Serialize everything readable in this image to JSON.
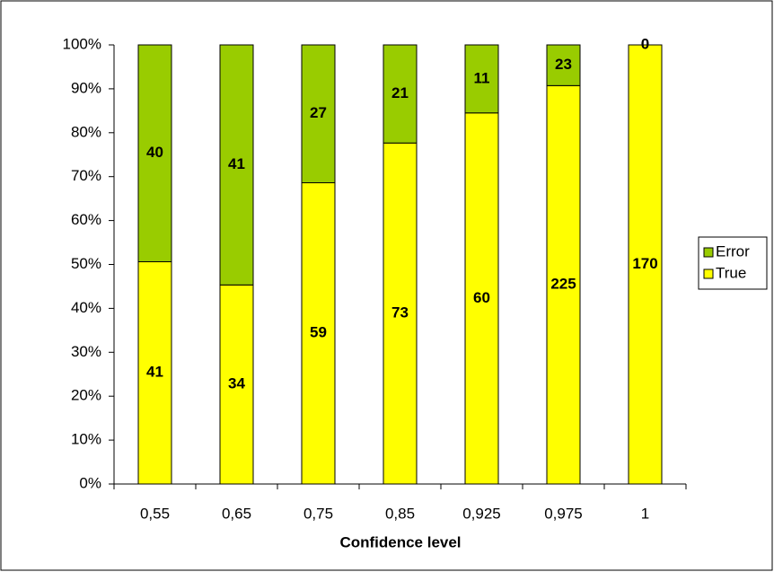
{
  "chart_data": {
    "type": "percent_stacked_bar",
    "x_label": "Confidence level",
    "categories": [
      "0,55",
      "0,65",
      "0,75",
      "0,85",
      "0,925",
      "0,975",
      "1"
    ],
    "series": [
      {
        "name": "True",
        "color": "#ffff00",
        "values": [
          41,
          34,
          59,
          73,
          60,
          225,
          170
        ]
      },
      {
        "name": "Error",
        "color": "#99cc00",
        "values": [
          40,
          41,
          27,
          21,
          11,
          23,
          0
        ]
      }
    ],
    "ylim": [
      0,
      100
    ],
    "yticks": [
      {
        "value": 0,
        "label": "0%"
      },
      {
        "value": 10,
        "label": "10%"
      },
      {
        "value": 20,
        "label": "20%"
      },
      {
        "value": 30,
        "label": "30%"
      },
      {
        "value": 40,
        "label": "40%"
      },
      {
        "value": 50,
        "label": "50%"
      },
      {
        "value": 60,
        "label": "60%"
      },
      {
        "value": 70,
        "label": "70%"
      },
      {
        "value": 80,
        "label": "80%"
      },
      {
        "value": 90,
        "label": "90%"
      },
      {
        "value": 100,
        "label": "100%"
      }
    ],
    "grid": false,
    "legend": "right"
  }
}
